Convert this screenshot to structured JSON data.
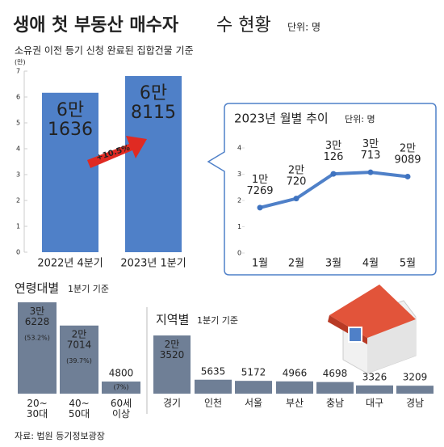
{
  "header": {
    "title_bold": "생애 첫 부동산 매수자",
    "title": "수 현황",
    "unit": "단위: 명",
    "subtitle": "소유권 이전 등기 신청 완료된 집합건물 기준",
    "source": "자료: 법원 등기정보광장"
  },
  "chart_data": [
    {
      "type": "bar",
      "categories": [
        "2022년 4분기",
        "2023년 1분기"
      ],
      "values": [
        6.1636,
        6.8115
      ],
      "value_labels": [
        "6만\n1636",
        "6만\n8115"
      ],
      "color": "#4f80c8",
      "ylim": [
        0,
        7
      ],
      "yticks": [
        0,
        1,
        2,
        3,
        4,
        5,
        6,
        7
      ],
      "ylabel": "(만)",
      "annotation": "+10.5%"
    },
    {
      "type": "line",
      "title": "2023년 월별 추이",
      "unit": "단위: 명",
      "categories": [
        "1월",
        "2월",
        "3월",
        "4월",
        "5월"
      ],
      "values": [
        1.7269,
        2.072,
        3.0126,
        3.0713,
        2.9089
      ],
      "value_labels": [
        "1만\n7269",
        "2만\n720",
        "3만\n126",
        "3만\n713",
        "2만\n9089"
      ],
      "color": "#4f80c8",
      "ylim": [
        0,
        4
      ],
      "yticks": [
        0,
        1,
        2,
        3,
        4
      ]
    },
    {
      "type": "bar",
      "title": "연령대별",
      "subtitle": "1분기 기준",
      "categories": [
        "20~\n30대",
        "40~\n50대",
        "60세\n이상"
      ],
      "values": [
        36228,
        27014,
        4800
      ],
      "value_labels": [
        "3만\n6228",
        "2만\n7014",
        "4800"
      ],
      "share_labels": [
        "(53.2%)",
        "(39.7%)",
        "(7%)"
      ],
      "color": "#6f7f96"
    },
    {
      "type": "bar",
      "title": "지역별",
      "subtitle": "1분기 기준",
      "categories": [
        "경기",
        "인천",
        "서울",
        "부산",
        "충남",
        "대구",
        "경남"
      ],
      "values": [
        23520,
        5635,
        5172,
        4966,
        4698,
        3326,
        3209
      ],
      "value_labels": [
        "2만\n3520",
        "5635",
        "5172",
        "4966",
        "4698",
        "3326",
        "3209"
      ],
      "color": "#6f7f96"
    }
  ]
}
